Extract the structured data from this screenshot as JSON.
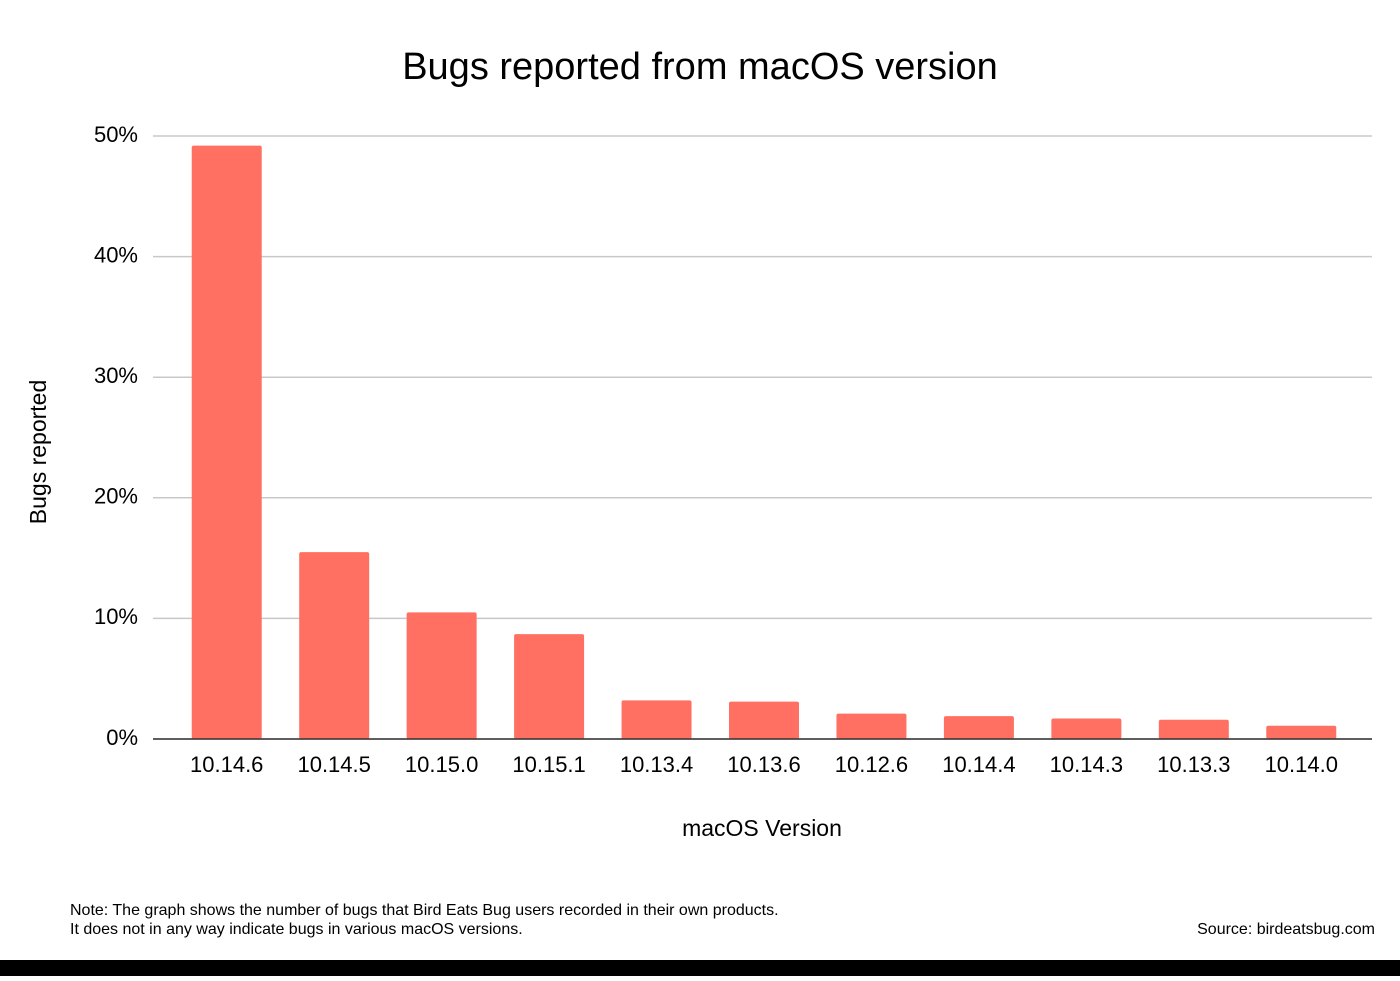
{
  "chart_data": {
    "type": "bar",
    "title": "Bugs reported from macOS version",
    "x_label": "macOS Version",
    "y_label": "Bugs reported",
    "categories": [
      "10.14.6",
      "10.14.5",
      "10.15.0",
      "10.15.1",
      "10.13.4",
      "10.13.6",
      "10.12.6",
      "10.14.4",
      "10.14.3",
      "10.13.3",
      "10.14.0"
    ],
    "values": [
      49.2,
      15.5,
      10.5,
      8.7,
      3.2,
      3.1,
      2.1,
      1.9,
      1.7,
      1.6,
      1.1
    ],
    "color": "#ff7062",
    "ylim": [
      0,
      50
    ],
    "yticks": [
      {
        "value": 0,
        "label": "0%"
      },
      {
        "value": 10,
        "label": "10%"
      },
      {
        "value": 20,
        "label": "20%"
      },
      {
        "value": 30,
        "label": "30%"
      },
      {
        "value": 40,
        "label": "40%"
      },
      {
        "value": 50,
        "label": "50%"
      }
    ],
    "grid": true,
    "note": [
      "Note: The graph shows the number of bugs that Bird Eats Bug users recorded in their own products.",
      "It does not in any way indicate bugs in various macOS versions."
    ],
    "source": "Source: birdeatsbug.com"
  }
}
